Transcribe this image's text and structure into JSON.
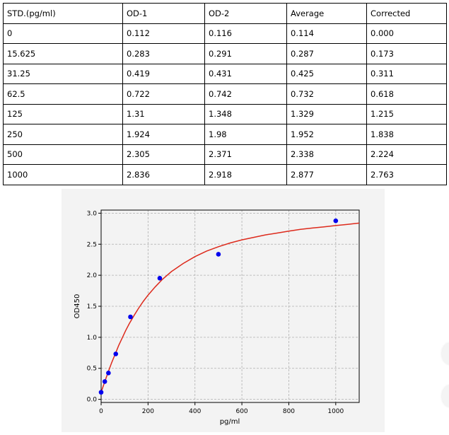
{
  "table": {
    "header": [
      "STD.(pg/ml)",
      "OD-1",
      "OD-2",
      "Average",
      "Corrected"
    ],
    "rows": [
      [
        "0",
        "0.112",
        "0.116",
        "0.114",
        "0.000"
      ],
      [
        "15.625",
        "0.283",
        "0.291",
        "0.287",
        "0.173"
      ],
      [
        "31.25",
        "0.419",
        "0.431",
        "0.425",
        "0.311"
      ],
      [
        "62.5",
        "0.722",
        "0.742",
        "0.732",
        "0.618"
      ],
      [
        "125",
        "1.31",
        "1.348",
        "1.329",
        "1.215"
      ],
      [
        "250",
        "1.924",
        "1.98",
        "1.952",
        "1.838"
      ],
      [
        "500",
        "2.305",
        "2.371",
        "2.338",
        "2.224"
      ],
      [
        "1000",
        "2.836",
        "2.918",
        "2.877",
        "2.763"
      ]
    ]
  },
  "chart_data": {
    "type": "scatter",
    "xlabel": "pg/ml",
    "ylabel": "OD450",
    "xlim": [
      0,
      1100
    ],
    "ylim": [
      -0.05,
      3.05
    ],
    "xticks": [
      0,
      200,
      400,
      600,
      800,
      1000
    ],
    "yticks": [
      0.0,
      0.5,
      1.0,
      1.5,
      2.0,
      2.5,
      3.0
    ],
    "grid": true,
    "points": {
      "x": [
        0,
        15.625,
        31.25,
        62.5,
        125,
        250,
        500,
        1000
      ],
      "y": [
        0.114,
        0.287,
        0.425,
        0.732,
        1.329,
        1.952,
        2.338,
        2.877
      ]
    },
    "fit_curve": {
      "x": [
        0,
        15,
        30,
        45,
        60,
        75,
        90,
        105,
        120,
        140,
        160,
        180,
        200,
        230,
        260,
        300,
        350,
        400,
        450,
        500,
        550,
        600,
        650,
        700,
        750,
        800,
        850,
        900,
        950,
        1000,
        1050,
        1100
      ],
      "y": [
        0.114,
        0.28,
        0.44,
        0.59,
        0.73,
        0.87,
        0.99,
        1.11,
        1.22,
        1.35,
        1.47,
        1.58,
        1.68,
        1.81,
        1.93,
        2.06,
        2.19,
        2.3,
        2.39,
        2.46,
        2.52,
        2.57,
        2.61,
        2.65,
        2.68,
        2.71,
        2.74,
        2.76,
        2.78,
        2.8,
        2.82,
        2.84
      ]
    },
    "colors": {
      "points": "#0000ee",
      "curve": "#dd2a1c",
      "grid": "#b0b0b0",
      "panel": "#f3f3f3"
    }
  }
}
